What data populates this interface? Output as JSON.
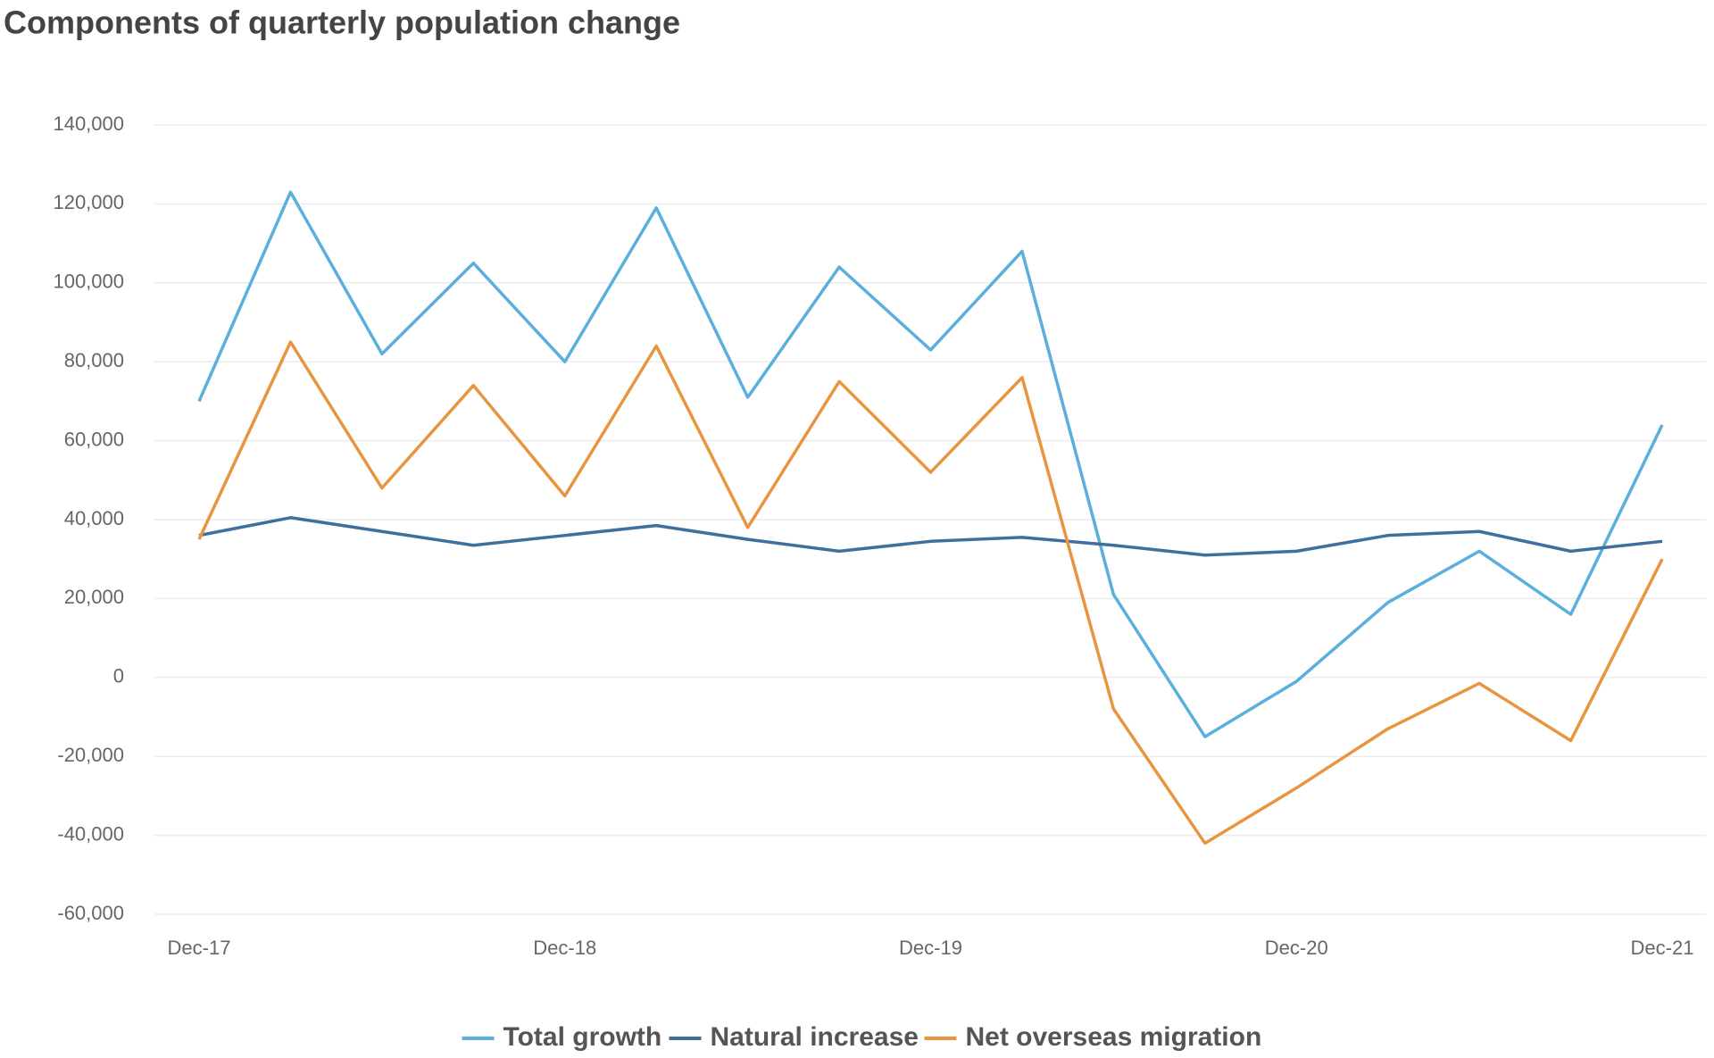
{
  "chart_data": {
    "type": "line",
    "title": "Components of quarterly population change",
    "categories": [
      "Dec-17",
      null,
      null,
      null,
      "Dec-18",
      null,
      null,
      null,
      "Dec-19",
      null,
      null,
      null,
      "Dec-20",
      null,
      null,
      null,
      "Dec-21"
    ],
    "series": [
      {
        "name": "Total growth",
        "color": "#5aafdc",
        "values": [
          70000,
          123000,
          82000,
          105000,
          80000,
          119000,
          71000,
          104000,
          83000,
          108000,
          21000,
          -15000,
          -1000,
          19000,
          32000,
          16000,
          64000
        ]
      },
      {
        "name": "Natural increase",
        "color": "#3f6f9c",
        "values": [
          36000,
          40500,
          37000,
          33500,
          36000,
          38500,
          35000,
          32000,
          34500,
          35500,
          33500,
          31000,
          32000,
          36000,
          37000,
          32000,
          34500
        ]
      },
      {
        "name": "Net overseas migration",
        "color": "#e8953f",
        "values": [
          35000,
          85000,
          48000,
          74000,
          46000,
          84000,
          38000,
          75000,
          52000,
          76000,
          -8000,
          -42000,
          -28000,
          -13000,
          -1500,
          -16000,
          30000
        ]
      }
    ],
    "ylim": [
      -60000,
      140000
    ],
    "yticks": [
      {
        "value": -60000,
        "label": "-60,000"
      },
      {
        "value": -40000,
        "label": "-40,000"
      },
      {
        "value": -20000,
        "label": "-20,000"
      },
      0,
      {
        "value": 20000,
        "label": "20,000"
      },
      {
        "value": 40000,
        "label": "40,000"
      },
      {
        "value": 60000,
        "label": "60,000"
      },
      {
        "value": 80000,
        "label": "80,000"
      },
      {
        "value": 100000,
        "label": "100,000"
      },
      {
        "value": 120000,
        "label": "120,000"
      },
      {
        "value": 140000,
        "label": "140,000"
      }
    ],
    "grid": true,
    "legend": "bottom"
  }
}
